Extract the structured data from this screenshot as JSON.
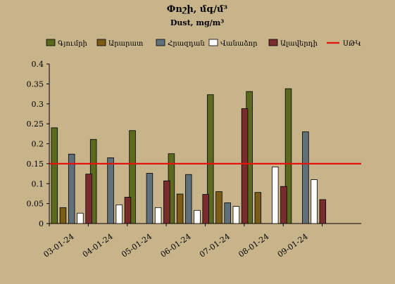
{
  "chart_data": {
    "type": "bar",
    "title": "Փոշի, մգ/մ³",
    "subtitle": "Dust, mg/m³",
    "categories": [
      "03-01-24",
      "04-01-24",
      "05-01-24",
      "06-01-24",
      "07-01-24",
      "08-01-24",
      "09-01-24"
    ],
    "series": [
      {
        "name": "Գյումրի",
        "color": "#5c6a1e",
        "values": [
          0.24,
          0.211,
          0.233,
          0.175,
          0.323,
          0.331,
          0.338
        ]
      },
      {
        "name": "Արարատ",
        "color": "#7a5c14",
        "values": [
          0.04,
          0.0,
          0.0,
          0.074,
          0.08,
          0.078,
          0.0
        ]
      },
      {
        "name": "Հրազդան",
        "color": "#5f707a",
        "values": [
          0.174,
          0.165,
          0.126,
          0.123,
          0.052,
          0.0,
          0.23
        ]
      },
      {
        "name": "Վանաձոր",
        "color": "#ffffff",
        "values": [
          0.026,
          0.047,
          0.04,
          0.033,
          0.043,
          0.142,
          0.11
        ]
      },
      {
        "name": "Ալավերդի",
        "color": "#7a2c2c",
        "values": [
          0.124,
          0.066,
          0.107,
          0.073,
          0.288,
          0.093,
          0.06
        ]
      }
    ],
    "reference_line": {
      "name": "ՍԹԿ",
      "value": 0.15,
      "color": "#e3120b"
    },
    "ylim": [
      0,
      0.4
    ],
    "yticks": [
      "0",
      "0.05",
      "0.1",
      "0.15",
      "0.2",
      "0.25",
      "0.3",
      "0.35",
      "0.4"
    ],
    "xlabel": "",
    "ylabel": "",
    "grid": false,
    "legend_position": "top"
  }
}
